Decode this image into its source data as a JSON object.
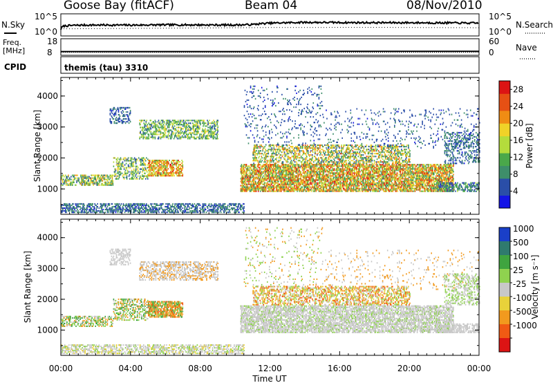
{
  "header": {
    "station": "Goose Bay (fitACF)",
    "beam": "Beam 04",
    "date": "08/Nov/2010"
  },
  "top_panels": {
    "noise": {
      "left_label": "N.Sky",
      "right_label": "N.Search",
      "left_ticks": [
        "10^5",
        "10^0"
      ],
      "right_ticks": [
        "10^5",
        "10^0"
      ]
    },
    "freq": {
      "left_label_1": "Freq.",
      "left_label_2": "[MHz]",
      "right_label": "Nave",
      "left_ticks": [
        "18",
        "8"
      ],
      "right_ticks": [
        "60",
        "0"
      ]
    },
    "cpid": {
      "label": "CPID",
      "value": "themis (tau) 3310"
    }
  },
  "colors": {
    "power": [
      "#1414e6",
      "#2a4ea8",
      "#3e8e6a",
      "#4aa84a",
      "#b4dc3c",
      "#f0d228",
      "#f08c14",
      "#e65014",
      "#dc1414"
    ],
    "velocity": [
      "#1a3fc8",
      "#2f7a6e",
      "#3fa43f",
      "#8fd24f",
      "#c8c8c8",
      "#e8d23a",
      "#f29a1e",
      "#f05a14",
      "#dc1414"
    ]
  },
  "chart_data": [
    {
      "type": "line",
      "name": "noise-panel",
      "ylabel_left": "N.Sky",
      "ylabel_right": "N.Search",
      "yscale": "log",
      "ylim": [
        1,
        100000
      ],
      "series": [
        {
          "name": "N.Sky",
          "style": "solid",
          "x": [
            0.0,
            0.2,
            1.0,
            2.0,
            4.0,
            6.0,
            8.0,
            10.0,
            11.0,
            12.0,
            14.0,
            16.0,
            18.0,
            20.0,
            22.0,
            24.0
          ],
          "y": [
            30,
            250,
            400,
            450,
            420,
            500,
            480,
            450,
            600,
            1500,
            2500,
            2200,
            2000,
            2000,
            1800,
            1500
          ]
        },
        {
          "name": "N.Search",
          "style": "dotted",
          "x": [
            0.0,
            6.0,
            12.0,
            18.0,
            24.0
          ],
          "y": [
            40,
            60,
            90,
            100,
            80
          ]
        }
      ]
    },
    {
      "type": "line",
      "name": "frequency-panel",
      "ylabel_left": "Freq. [MHz]",
      "ylabel_right": "Nave",
      "ylim_left": [
        8,
        18
      ],
      "ylim_right": [
        0,
        60
      ],
      "series": [
        {
          "name": "Freq.",
          "style": "solid",
          "x": [
            0.0,
            10.5,
            11.0,
            24.0
          ],
          "y": [
            10.1,
            10.1,
            10.3,
            10.3
          ]
        },
        {
          "name": "Nave",
          "style": "dotted",
          "x": [
            0.0,
            24.0
          ],
          "y": [
            10,
            10
          ]
        }
      ]
    },
    {
      "type": "heatmap",
      "name": "power",
      "ylabel": "Slant Range [km]",
      "yticks": [
        "1000",
        "2000",
        "3000",
        "4000"
      ],
      "ylim": [
        180,
        4600
      ],
      "xlim": [
        0,
        24
      ],
      "colorbar_label": "Power [dB]",
      "colorbar_ticks": [
        "4",
        "8",
        "12",
        "16",
        "20",
        "24",
        "28"
      ],
      "clim": [
        0,
        30
      ],
      "regions": [
        {
          "t": [
            0.0,
            10.5
          ],
          "r": [
            220,
            500
          ],
          "v": [
            3,
            10
          ],
          "d": 0.5
        },
        {
          "t": [
            0.0,
            3.0
          ],
          "r": [
            1100,
            1450
          ],
          "v": [
            5,
            22
          ],
          "d": 0.45
        },
        {
          "t": [
            3.0,
            5.0
          ],
          "r": [
            1300,
            2000
          ],
          "v": [
            5,
            20
          ],
          "d": 0.35
        },
        {
          "t": [
            5.0,
            7.0
          ],
          "r": [
            1400,
            1900
          ],
          "v": [
            12,
            27
          ],
          "d": 0.6
        },
        {
          "t": [
            2.8,
            4.0
          ],
          "r": [
            3100,
            3600
          ],
          "v": [
            3,
            9
          ],
          "d": 0.35
        },
        {
          "t": [
            4.5,
            9.0
          ],
          "r": [
            2600,
            3200
          ],
          "v": [
            5,
            18
          ],
          "d": 0.4
        },
        {
          "t": [
            10.3,
            22.5
          ],
          "r": [
            900,
            1800
          ],
          "v": [
            8,
            28
          ],
          "d": 0.65
        },
        {
          "t": [
            11.0,
            20.0
          ],
          "r": [
            1800,
            2400
          ],
          "v": [
            5,
            24
          ],
          "d": 0.4
        },
        {
          "t": [
            10.5,
            15.0
          ],
          "r": [
            2400,
            4300
          ],
          "v": [
            3,
            8
          ],
          "d": 0.07
        },
        {
          "t": [
            15.0,
            24.0
          ],
          "r": [
            2300,
            3600
          ],
          "v": [
            3,
            8
          ],
          "d": 0.06
        },
        {
          "t": [
            21.5,
            24.0
          ],
          "r": [
            900,
            1200
          ],
          "v": [
            3,
            14
          ],
          "d": 0.5
        },
        {
          "t": [
            22.0,
            24.0
          ],
          "r": [
            1800,
            2800
          ],
          "v": [
            3,
            10
          ],
          "d": 0.3
        }
      ]
    },
    {
      "type": "heatmap",
      "name": "velocity",
      "ylabel": "Slant Range [km]",
      "yticks": [
        "1000",
        "2000",
        "3000",
        "4000"
      ],
      "ylim": [
        180,
        4600
      ],
      "xlim": [
        0,
        24
      ],
      "xlabel": "Time UT",
      "xticks": [
        "00:00",
        "04:00",
        "08:00",
        "12:00",
        "16:00",
        "20:00",
        "00:00"
      ],
      "colorbar_label": "Velocity [m s⁻¹]",
      "colorbar_ticks": [
        "1000",
        "500",
        "100",
        "25",
        "-25",
        "-100",
        "-500",
        "-1000"
      ],
      "regions": [
        {
          "t": [
            0.0,
            10.5
          ],
          "r": [
            220,
            500
          ],
          "cls": [
            4,
            4,
            4,
            3,
            5
          ],
          "d": 0.45
        },
        {
          "t": [
            0.0,
            3.0
          ],
          "r": [
            1100,
            1450
          ],
          "cls": [
            2,
            3,
            6,
            4
          ],
          "d": 0.4
        },
        {
          "t": [
            3.0,
            5.0
          ],
          "r": [
            1300,
            2000
          ],
          "cls": [
            2,
            3,
            6,
            4
          ],
          "d": 0.35
        },
        {
          "t": [
            5.0,
            7.0
          ],
          "r": [
            1400,
            1900
          ],
          "cls": [
            6,
            6,
            2,
            3,
            7
          ],
          "d": 0.6
        },
        {
          "t": [
            2.8,
            4.0
          ],
          "r": [
            3100,
            3600
          ],
          "cls": [
            4
          ],
          "d": 0.35
        },
        {
          "t": [
            4.5,
            9.0
          ],
          "r": [
            2600,
            3200
          ],
          "cls": [
            4,
            4,
            6
          ],
          "d": 0.4
        },
        {
          "t": [
            10.3,
            22.5
          ],
          "r": [
            900,
            1800
          ],
          "cls": [
            4,
            4,
            4,
            4,
            3
          ],
          "d": 0.6
        },
        {
          "t": [
            11.0,
            20.0
          ],
          "r": [
            1800,
            2400
          ],
          "cls": [
            4,
            6,
            3,
            5,
            7
          ],
          "d": 0.4
        },
        {
          "t": [
            10.5,
            15.0
          ],
          "r": [
            2400,
            4300
          ],
          "cls": [
            4,
            6,
            3
          ],
          "d": 0.06
        },
        {
          "t": [
            15.0,
            24.0
          ],
          "r": [
            2300,
            3600
          ],
          "cls": [
            4,
            6
          ],
          "d": 0.05
        },
        {
          "t": [
            21.5,
            24.0
          ],
          "r": [
            900,
            1200
          ],
          "cls": [
            4
          ],
          "d": 0.5
        },
        {
          "t": [
            22.0,
            24.0
          ],
          "r": [
            1800,
            2800
          ],
          "cls": [
            4,
            3
          ],
          "d": 0.3
        }
      ]
    }
  ]
}
